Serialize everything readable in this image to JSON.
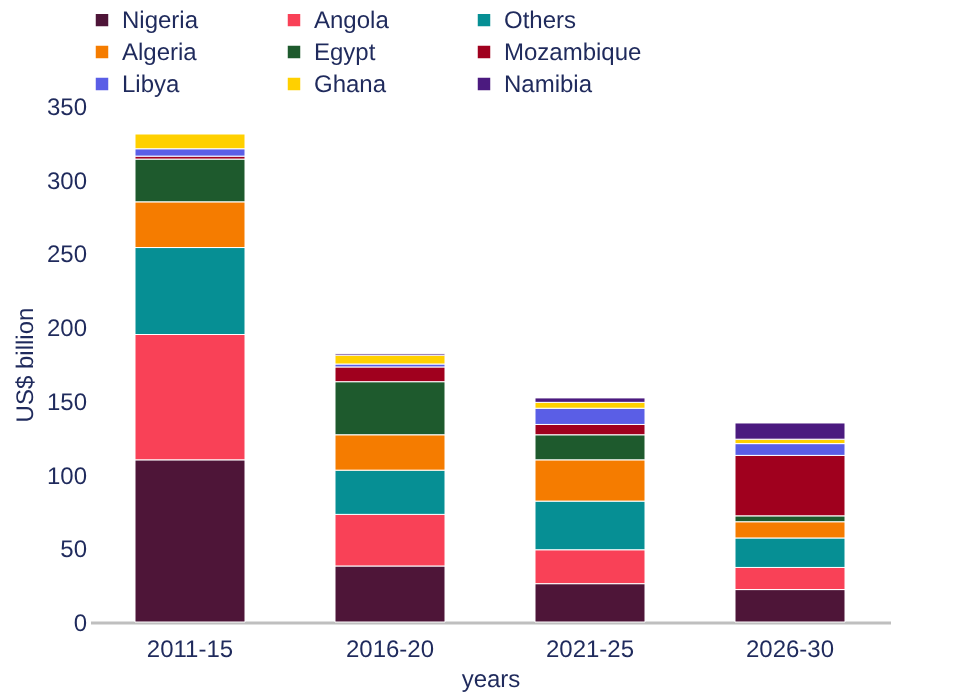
{
  "chart_data": {
    "type": "bar",
    "stacked": true,
    "xlabel": "years",
    "ylabel": "US$ billion",
    "categories": [
      "2011-15",
      "2016-20",
      "2021-25",
      "2026-30"
    ],
    "series": [
      {
        "name": "Nigeria",
        "color": "#4e1538",
        "values": [
          110,
          38,
          26,
          22
        ]
      },
      {
        "name": "Angola",
        "color": "#f94157",
        "values": [
          85,
          35,
          23,
          15
        ]
      },
      {
        "name": "Others",
        "color": "#068f94",
        "values": [
          59,
          30,
          33,
          20
        ]
      },
      {
        "name": "Algeria",
        "color": "#f57c00",
        "values": [
          31,
          24,
          28,
          11
        ]
      },
      {
        "name": "Egypt",
        "color": "#1e5a2d",
        "values": [
          29,
          36,
          17,
          4
        ]
      },
      {
        "name": "Mozambique",
        "color": "#a0001e",
        "values": [
          2,
          10,
          7,
          41
        ]
      },
      {
        "name": "Libya",
        "color": "#5a5ee6",
        "values": [
          5,
          2,
          11,
          8
        ]
      },
      {
        "name": "Ghana",
        "color": "#ffd000",
        "values": [
          10,
          6,
          4,
          3
        ]
      },
      {
        "name": "Namibia",
        "color": "#4b1a7f",
        "values": [
          null,
          1,
          3,
          11
        ]
      }
    ],
    "ylim": [
      0,
      350
    ],
    "yticks": [
      0,
      50,
      100,
      150,
      200,
      250,
      300,
      350
    ],
    "grid": false,
    "legend": "top"
  }
}
